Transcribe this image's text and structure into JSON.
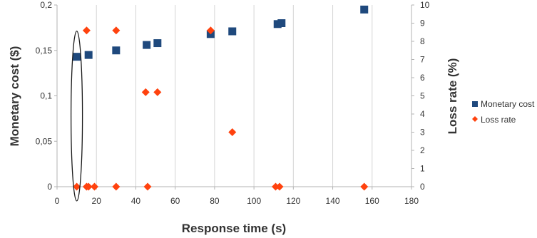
{
  "chart_data": {
    "type": "scatter",
    "xlabel": "Response time (s)",
    "ylabel": "Monetary cost ($)",
    "y2label": "Loss rate (%)",
    "xlim": [
      0,
      180
    ],
    "ylim": [
      0,
      0.2
    ],
    "y2lim": [
      0,
      10
    ],
    "x_ticks": [
      0,
      20,
      40,
      60,
      80,
      100,
      120,
      140,
      160,
      180
    ],
    "x_tick_labels": [
      "0",
      "20",
      "40",
      "60",
      "80",
      "100",
      "120",
      "140",
      "160",
      "180"
    ],
    "y_ticks": [
      0,
      0.05,
      0.1,
      0.15,
      0.2
    ],
    "y_tick_labels": [
      "0",
      "0,05",
      "0,1",
      "0,15",
      "0,2"
    ],
    "y2_ticks": [
      0,
      1,
      2,
      3,
      4,
      5,
      6,
      7,
      8,
      9,
      10
    ],
    "y2_tick_labels": [
      "0",
      "1",
      "2",
      "3",
      "4",
      "5",
      "6",
      "7",
      "8",
      "9",
      "10"
    ],
    "grid": "vertical",
    "legend_position": "right",
    "series": [
      {
        "name": "Monetary cost",
        "axis": "left",
        "marker": "square",
        "color": "#1f497d",
        "x": [
          10,
          16,
          30,
          45.5,
          51,
          78,
          89,
          112,
          114,
          156
        ],
        "y": [
          0.143,
          0.145,
          0.15,
          0.156,
          0.158,
          0.168,
          0.171,
          0.179,
          0.18,
          0.195
        ]
      },
      {
        "name": "Loss rate",
        "axis": "right",
        "marker": "diamond",
        "color": "#ff420e",
        "x": [
          15,
          30,
          45,
          51,
          78,
          89,
          10,
          15,
          16,
          19,
          30,
          46,
          111,
          113,
          156
        ],
        "y": [
          8.6,
          8.6,
          5.2,
          5.2,
          8.6,
          3,
          0,
          0,
          0,
          0,
          0,
          0,
          0,
          0,
          0
        ]
      }
    ],
    "annotations": [
      {
        "type": "ellipse",
        "x": 10,
        "y_from": 0,
        "y_to": 0.165
      }
    ]
  }
}
